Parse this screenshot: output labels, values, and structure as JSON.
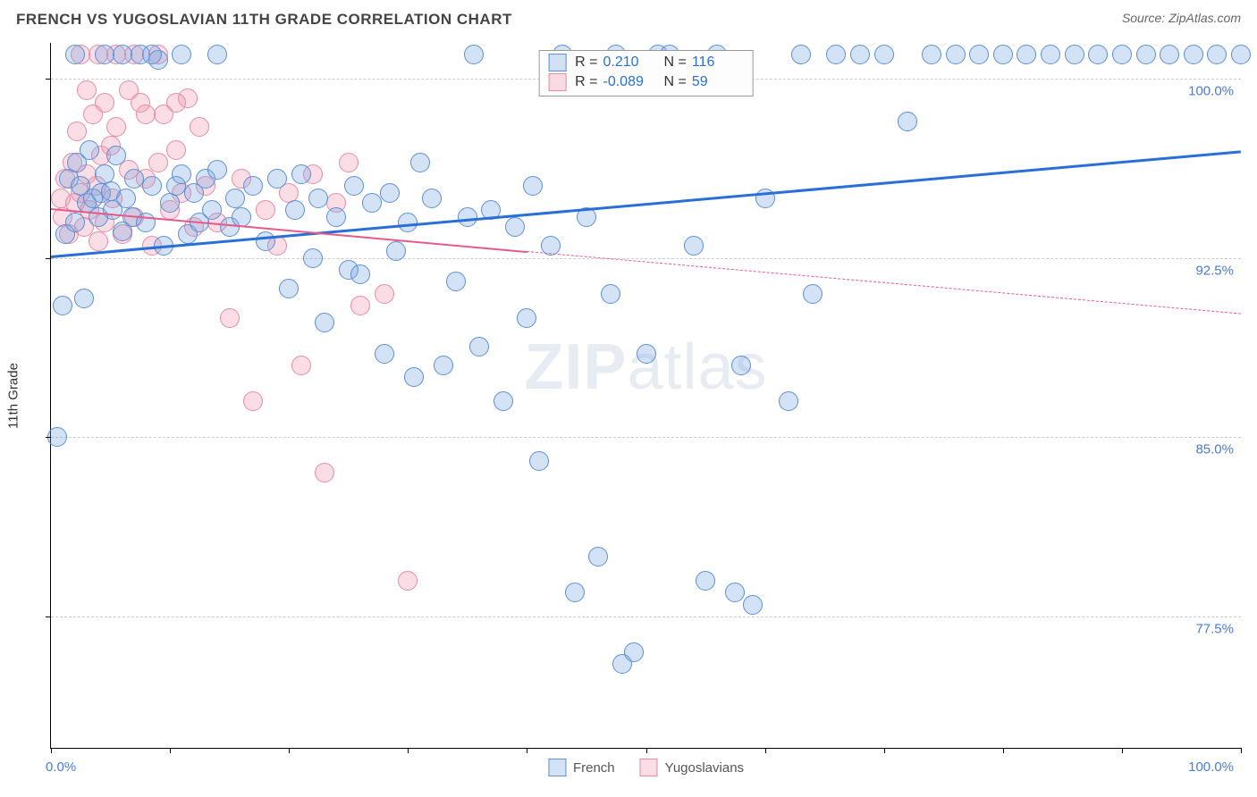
{
  "header": {
    "title": "FRENCH VS YUGOSLAVIAN 11TH GRADE CORRELATION CHART",
    "source": "Source: ZipAtlas.com"
  },
  "watermark": {
    "left": "ZIP",
    "right": "atlas"
  },
  "axes": {
    "y_title": "11th Grade",
    "x_min": 0,
    "x_max": 100,
    "y_min": 72,
    "y_max": 101.5,
    "x_tick_labels": {
      "min": "0.0%",
      "max": "100.0%"
    },
    "x_tick_positions_pct": [
      0,
      10,
      20,
      30,
      40,
      50,
      60,
      70,
      80,
      90,
      100
    ],
    "y_ticks": [
      {
        "value": 100.0,
        "label": "100.0%"
      },
      {
        "value": 92.5,
        "label": "92.5%"
      },
      {
        "value": 85.0,
        "label": "85.0%"
      },
      {
        "value": 77.5,
        "label": "77.5%"
      }
    ],
    "grid_color": "#cccccc",
    "axis_color": "#000000",
    "tick_label_color": "#4a7bd6"
  },
  "series": {
    "french": {
      "label": "French",
      "fill": "rgba(120,165,225,0.32)",
      "stroke": "#5b8fd6",
      "trend_color": "#2a6fd6",
      "trend_width": 3,
      "R": "0.210",
      "N": "116",
      "trend": {
        "x1": 0,
        "y1": 92.6,
        "x2": 100,
        "y2": 97.0,
        "dash": "none"
      },
      "marker_radius": 11,
      "points": [
        [
          0.5,
          85.0
        ],
        [
          1.0,
          90.5
        ],
        [
          1.2,
          93.5
        ],
        [
          1.5,
          95.8
        ],
        [
          2.0,
          94.0
        ],
        [
          2.2,
          96.5
        ],
        [
          2.5,
          95.5
        ],
        [
          2.8,
          90.8
        ],
        [
          3.0,
          94.8
        ],
        [
          3.2,
          97.0
        ],
        [
          3.5,
          95.0
        ],
        [
          4.0,
          94.2
        ],
        [
          4.2,
          95.2
        ],
        [
          4.5,
          96.0
        ],
        [
          5.0,
          95.3
        ],
        [
          5.2,
          94.5
        ],
        [
          5.5,
          96.8
        ],
        [
          6.0,
          93.6
        ],
        [
          6.3,
          95.0
        ],
        [
          6.8,
          94.2
        ],
        [
          7.0,
          95.8
        ],
        [
          7.5,
          101.0
        ],
        [
          8.0,
          94.0
        ],
        [
          8.5,
          95.5
        ],
        [
          9.0,
          100.8
        ],
        [
          9.5,
          93.0
        ],
        [
          10.0,
          94.8
        ],
        [
          10.5,
          95.5
        ],
        [
          11.0,
          96.0
        ],
        [
          11.5,
          93.5
        ],
        [
          12.0,
          95.2
        ],
        [
          12.5,
          94.0
        ],
        [
          13.0,
          95.8
        ],
        [
          13.5,
          94.5
        ],
        [
          14.0,
          96.2
        ],
        [
          15.0,
          93.8
        ],
        [
          15.5,
          95.0
        ],
        [
          16.0,
          94.2
        ],
        [
          17.0,
          95.5
        ],
        [
          18.0,
          93.2
        ],
        [
          19.0,
          95.8
        ],
        [
          20.0,
          91.2
        ],
        [
          20.5,
          94.5
        ],
        [
          21.0,
          96.0
        ],
        [
          22.0,
          92.5
        ],
        [
          22.5,
          95.0
        ],
        [
          23.0,
          89.8
        ],
        [
          24.0,
          94.2
        ],
        [
          25.0,
          92.0
        ],
        [
          25.5,
          95.5
        ],
        [
          26.0,
          91.8
        ],
        [
          27.0,
          94.8
        ],
        [
          28.0,
          88.5
        ],
        [
          28.5,
          95.2
        ],
        [
          29.0,
          92.8
        ],
        [
          30.0,
          94.0
        ],
        [
          30.5,
          87.5
        ],
        [
          31.0,
          96.5
        ],
        [
          32.0,
          95.0
        ],
        [
          33.0,
          88.0
        ],
        [
          34.0,
          91.5
        ],
        [
          35.0,
          94.2
        ],
        [
          35.5,
          101.0
        ],
        [
          36.0,
          88.8
        ],
        [
          37.0,
          94.5
        ],
        [
          38.0,
          86.5
        ],
        [
          39.0,
          93.8
        ],
        [
          40.0,
          90.0
        ],
        [
          40.5,
          95.5
        ],
        [
          41.0,
          84.0
        ],
        [
          42.0,
          93.0
        ],
        [
          43.0,
          101.0
        ],
        [
          44.0,
          78.5
        ],
        [
          45.0,
          94.2
        ],
        [
          46.0,
          80.0
        ],
        [
          47.0,
          91.0
        ],
        [
          47.5,
          101.0
        ],
        [
          48.0,
          75.5
        ],
        [
          49.0,
          76.0
        ],
        [
          50.0,
          88.5
        ],
        [
          51.0,
          101.0
        ],
        [
          52.0,
          101.0
        ],
        [
          54.0,
          93.0
        ],
        [
          55.0,
          79.0
        ],
        [
          56.0,
          101.0
        ],
        [
          57.5,
          78.5
        ],
        [
          58.0,
          88.0
        ],
        [
          59.0,
          78.0
        ],
        [
          60.0,
          95.0
        ],
        [
          62.0,
          86.5
        ],
        [
          63.0,
          101.0
        ],
        [
          64.0,
          91.0
        ],
        [
          66.0,
          101.0
        ],
        [
          68.0,
          101.0
        ],
        [
          70.0,
          101.0
        ],
        [
          72.0,
          98.2
        ],
        [
          74.0,
          101.0
        ],
        [
          76.0,
          101.0
        ],
        [
          78.0,
          101.0
        ],
        [
          80.0,
          101.0
        ],
        [
          82.0,
          101.0
        ],
        [
          84.0,
          101.0
        ],
        [
          86.0,
          101.0
        ],
        [
          88.0,
          101.0
        ],
        [
          90.0,
          101.0
        ],
        [
          92.0,
          101.0
        ],
        [
          94.0,
          101.0
        ],
        [
          96.0,
          101.0
        ],
        [
          98.0,
          101.0
        ],
        [
          100.0,
          101.0
        ],
        [
          2.0,
          101.0
        ],
        [
          4.5,
          101.0
        ],
        [
          6.0,
          101.0
        ],
        [
          8.5,
          101.0
        ],
        [
          11.0,
          101.0
        ],
        [
          14.0,
          101.0
        ]
      ]
    },
    "yugoslavians": {
      "label": "Yugoslavians",
      "fill": "rgba(240,150,175,0.32)",
      "stroke": "#e88aa8",
      "trend_color": "#e65a8a",
      "trend_width": 2,
      "R": "-0.089",
      "N": "59",
      "trend_solid": {
        "x1": 0,
        "y1": 94.6,
        "x2": 40,
        "y2": 92.8
      },
      "trend_dash": {
        "x1": 40,
        "y1": 92.8,
        "x2": 100,
        "y2": 90.2
      },
      "marker_radius": 11,
      "points": [
        [
          0.8,
          95.0
        ],
        [
          1.0,
          94.2
        ],
        [
          1.2,
          95.8
        ],
        [
          1.5,
          93.5
        ],
        [
          1.8,
          96.5
        ],
        [
          2.0,
          94.8
        ],
        [
          2.2,
          97.8
        ],
        [
          2.5,
          95.2
        ],
        [
          2.8,
          93.8
        ],
        [
          3.0,
          96.0
        ],
        [
          3.2,
          94.5
        ],
        [
          3.5,
          98.5
        ],
        [
          3.8,
          95.5
        ],
        [
          4.0,
          93.2
        ],
        [
          4.2,
          96.8
        ],
        [
          4.5,
          94.0
        ],
        [
          5.0,
          97.2
        ],
        [
          5.2,
          95.0
        ],
        [
          5.5,
          98.0
        ],
        [
          6.0,
          93.5
        ],
        [
          6.5,
          96.2
        ],
        [
          7.0,
          94.2
        ],
        [
          7.5,
          99.0
        ],
        [
          8.0,
          95.8
        ],
        [
          8.5,
          93.0
        ],
        [
          9.0,
          96.5
        ],
        [
          9.5,
          98.5
        ],
        [
          10.0,
          94.5
        ],
        [
          10.5,
          97.0
        ],
        [
          11.0,
          95.2
        ],
        [
          11.5,
          99.2
        ],
        [
          12.0,
          93.8
        ],
        [
          13.0,
          95.5
        ],
        [
          14.0,
          94.0
        ],
        [
          15.0,
          90.0
        ],
        [
          16.0,
          95.8
        ],
        [
          17.0,
          86.5
        ],
        [
          18.0,
          94.5
        ],
        [
          19.0,
          93.0
        ],
        [
          20.0,
          95.2
        ],
        [
          21.0,
          88.0
        ],
        [
          22.0,
          96.0
        ],
        [
          23.0,
          83.5
        ],
        [
          24.0,
          94.8
        ],
        [
          25.0,
          96.5
        ],
        [
          26.0,
          90.5
        ],
        [
          28.0,
          91.0
        ],
        [
          30.0,
          79.0
        ],
        [
          2.5,
          101.0
        ],
        [
          4.0,
          101.0
        ],
        [
          5.5,
          101.0
        ],
        [
          7.0,
          101.0
        ],
        [
          9.0,
          101.0
        ],
        [
          3.0,
          99.5
        ],
        [
          4.5,
          99.0
        ],
        [
          6.5,
          99.5
        ],
        [
          8.0,
          98.5
        ],
        [
          10.5,
          99.0
        ],
        [
          12.5,
          98.0
        ]
      ]
    }
  },
  "legend": {
    "stats_rows": [
      {
        "series": "french",
        "R_label": "R =",
        "N_label": "N ="
      },
      {
        "series": "yugoslavians",
        "R_label": "R =",
        "N_label": "N ="
      }
    ]
  },
  "colors": {
    "background": "#ffffff",
    "title": "#444444",
    "source": "#666666",
    "stat_value": "#2a6fd6"
  }
}
